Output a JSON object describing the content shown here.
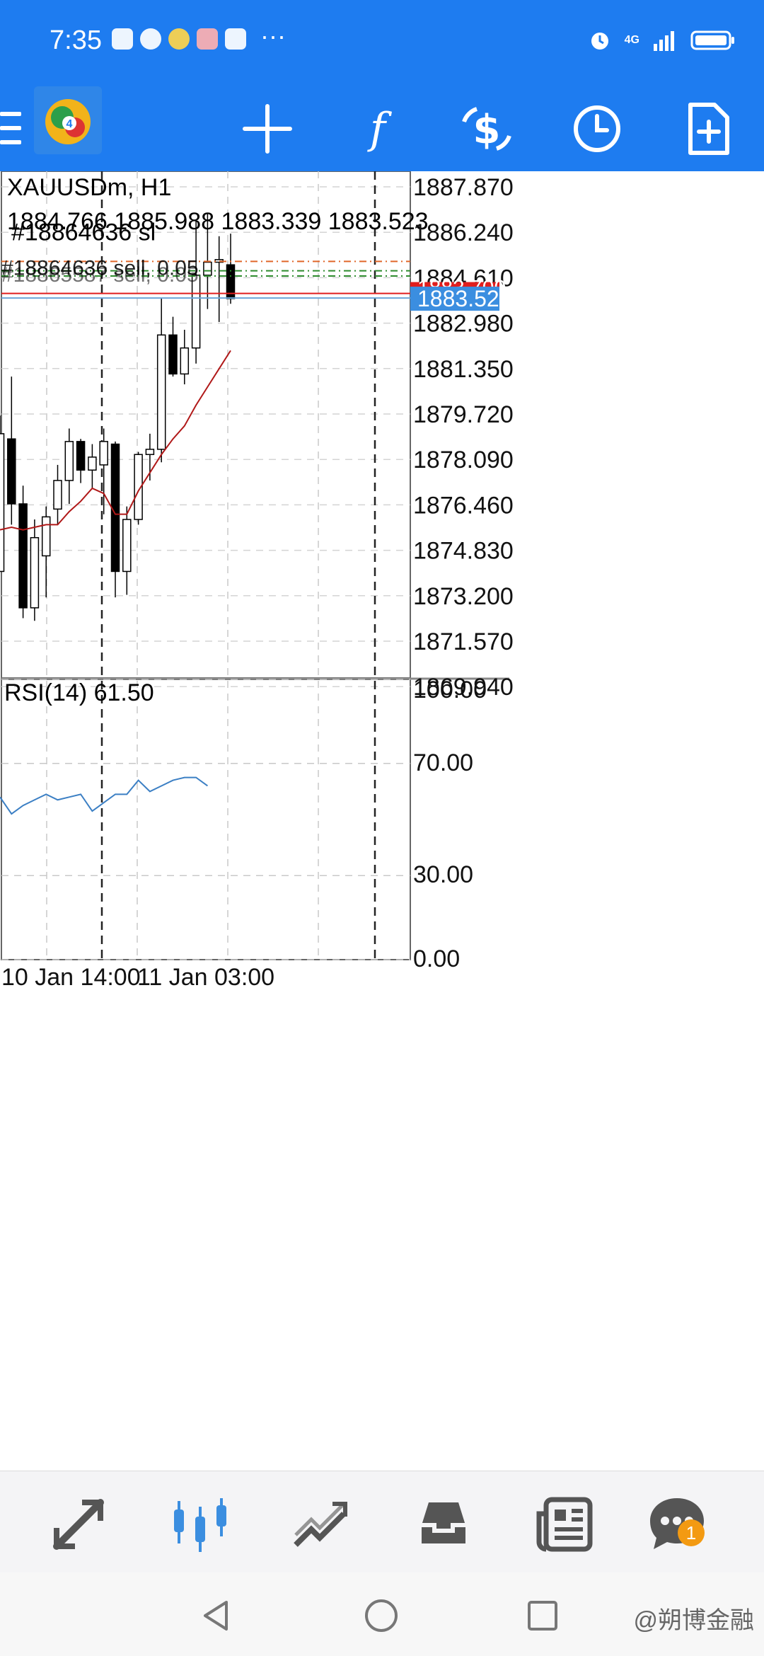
{
  "status_bar": {
    "time": "7:35",
    "more": "···",
    "network": "4G"
  },
  "toolbar": {
    "icons": [
      "menu-icon",
      "app-logo",
      "crosshair-icon",
      "indicators-icon",
      "trade-icon",
      "timeframe-icon",
      "new-order-icon"
    ]
  },
  "chart": {
    "symbol": "XAUUSDm, H1",
    "ohlc": "1884.766 1885.988 1883.339 1883.523",
    "order_label_sl": "#18864636 sl",
    "order_label_sell1": "#18864636 sell, 0.05",
    "order_label_sell2": "#18865587 sell, 0.05",
    "price_axis": [
      "1887.870",
      "1886.240",
      "1884.610",
      "1882.980",
      "1881.350",
      "1879.720",
      "1878.090",
      "1876.460",
      "1874.830",
      "1873.200",
      "1871.570",
      "1869.940"
    ],
    "ask_price": "1883.700",
    "bid_price": "1883.523",
    "colors": {
      "bull_candle": "#ffffff",
      "bear_candle": "#000000",
      "ma_line": "#b01818",
      "rsi_line": "#3b7fc4",
      "ask_line": "#e01e1e",
      "bid_line": "#6da6d8",
      "order_line": "#2e8b2e",
      "sl_line": "#e0672a",
      "price_tag_bid": "#3b8ee0",
      "price_tag_ask": "#e01e1e"
    }
  },
  "rsi": {
    "label": "RSI(14) 61.50",
    "axis": [
      "100.00",
      "70.00",
      "30.00",
      "0.00"
    ],
    "values": [
      58,
      52,
      55,
      57,
      59,
      57,
      58,
      59,
      53,
      56,
      59,
      59,
      64,
      60,
      62,
      64,
      65,
      65,
      62
    ]
  },
  "time_axis": [
    "10 Jan 14:00",
    "11 Jan 03:00"
  ],
  "candles": [
    {
      "o": 1873.0,
      "h": 1879.0,
      "l": 1873.0,
      "c": 1878.3
    },
    {
      "o": 1878.1,
      "h": 1880.5,
      "l": 1874.8,
      "c": 1875.6
    },
    {
      "o": 1875.6,
      "h": 1876.3,
      "l": 1871.2,
      "c": 1871.6
    },
    {
      "o": 1871.6,
      "h": 1875.0,
      "l": 1871.1,
      "c": 1874.3
    },
    {
      "o": 1873.6,
      "h": 1875.5,
      "l": 1872.0,
      "c": 1875.1
    },
    {
      "o": 1875.4,
      "h": 1877.1,
      "l": 1874.8,
      "c": 1876.5
    },
    {
      "o": 1876.5,
      "h": 1878.5,
      "l": 1875.6,
      "c": 1878.0
    },
    {
      "o": 1878.0,
      "h": 1878.1,
      "l": 1876.4,
      "c": 1876.9
    },
    {
      "o": 1876.9,
      "h": 1877.9,
      "l": 1876.2,
      "c": 1877.4
    },
    {
      "o": 1877.1,
      "h": 1878.5,
      "l": 1875.2,
      "c": 1878.0
    },
    {
      "o": 1877.9,
      "h": 1878.0,
      "l": 1872.0,
      "c": 1873.0
    },
    {
      "o": 1873.0,
      "h": 1875.5,
      "l": 1872.1,
      "c": 1875.0
    },
    {
      "o": 1875.0,
      "h": 1877.6,
      "l": 1874.8,
      "c": 1877.5
    },
    {
      "o": 1877.5,
      "h": 1878.3,
      "l": 1876.5,
      "c": 1877.7
    },
    {
      "o": 1877.7,
      "h": 1883.5,
      "l": 1877.2,
      "c": 1882.1
    },
    {
      "o": 1882.1,
      "h": 1882.8,
      "l": 1880.5,
      "c": 1880.6
    },
    {
      "o": 1880.6,
      "h": 1882.3,
      "l": 1880.2,
      "c": 1881.6
    },
    {
      "o": 1881.6,
      "h": 1886.5,
      "l": 1881.0,
      "c": 1884.4
    },
    {
      "o": 1884.4,
      "h": 1886.8,
      "l": 1883.1,
      "c": 1884.9
    },
    {
      "o": 1884.9,
      "h": 1885.9,
      "l": 1882.6,
      "c": 1885.0
    },
    {
      "o": 1884.8,
      "h": 1886.0,
      "l": 1883.3,
      "c": 1883.5
    }
  ],
  "ma": [
    1874.6,
    1874.7,
    1874.6,
    1874.7,
    1874.8,
    1874.8,
    1875.3,
    1875.7,
    1876.2,
    1876.0,
    1875.2,
    1875.2,
    1876.1,
    1876.8,
    1877.5,
    1878.1,
    1878.6,
    1879.4,
    1880.1,
    1880.8,
    1881.5
  ],
  "price_range": [
    1868.9,
    1888.4
  ],
  "order_prices": {
    "sl": 1884.93,
    "sell1": 1884.57,
    "sell2": 1884.37
  },
  "bottom_nav": {
    "items": [
      "quotes-icon",
      "chart-icon",
      "trade-icon",
      "history-icon",
      "news-icon",
      "messages-icon"
    ],
    "badge": "1"
  },
  "system_nav": {
    "watermark": "@朔博金融"
  }
}
